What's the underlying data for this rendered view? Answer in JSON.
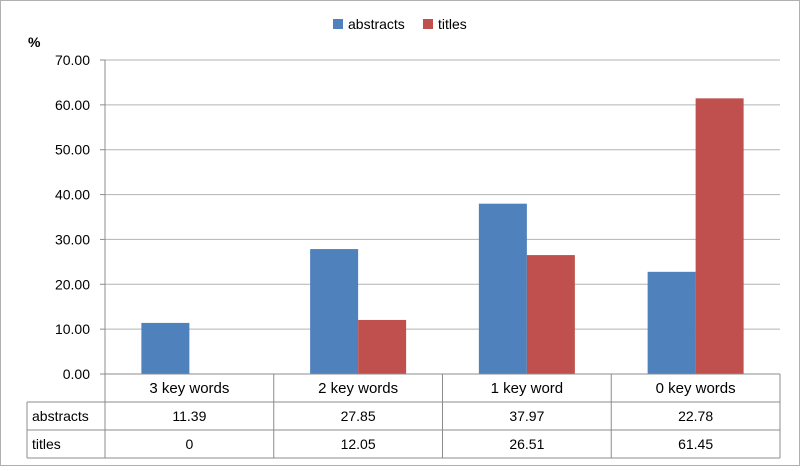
{
  "chart_data": {
    "type": "bar",
    "ylabel": "%",
    "ylim": [
      0,
      70
    ],
    "ytick_step": 10,
    "ytick_labels": [
      "0.00",
      "10.00",
      "20.00",
      "30.00",
      "40.00",
      "50.00",
      "60.00",
      "70.00"
    ],
    "grid": true,
    "legend_position": "top-center",
    "categories": [
      "3 key words",
      "2 key words",
      "1 key word",
      "0 key words"
    ],
    "series": [
      {
        "name": "abstracts",
        "color": "#4F81BD",
        "values": [
          11.39,
          27.85,
          37.97,
          22.78
        ],
        "labels": [
          "11.39",
          "27.85",
          "37.97",
          "22.78"
        ]
      },
      {
        "name": "titles",
        "color": "#C0504D",
        "values": [
          0,
          12.05,
          26.51,
          61.45
        ],
        "labels": [
          "0",
          "12.05",
          "26.51",
          "61.45"
        ]
      }
    ],
    "data_table": true
  }
}
